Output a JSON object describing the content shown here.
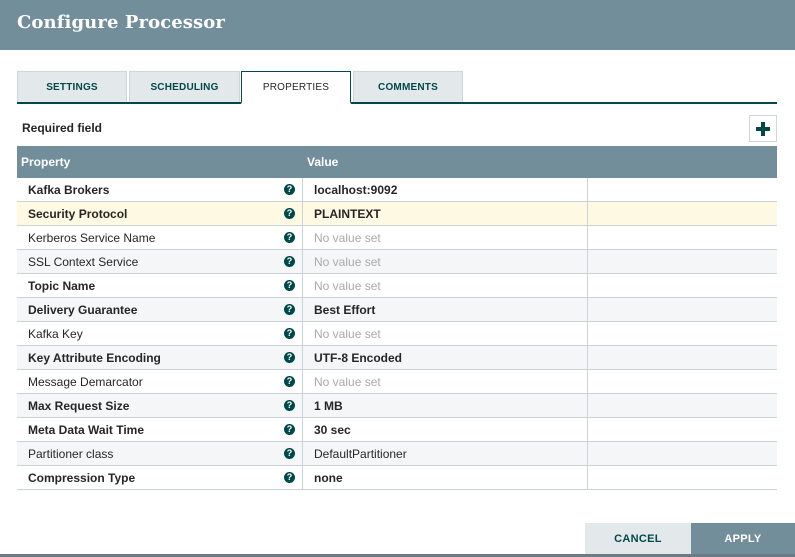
{
  "header": {
    "title": "Configure Processor"
  },
  "tabs": [
    {
      "label": "SETTINGS",
      "active": false
    },
    {
      "label": "SCHEDULING",
      "active": false
    },
    {
      "label": "PROPERTIES",
      "active": true
    },
    {
      "label": "COMMENTS",
      "active": false
    }
  ],
  "properties_panel": {
    "required_label": "Required field",
    "add_icon": "plus-icon",
    "columns": {
      "property": "Property",
      "value": "Value"
    },
    "rows": [
      {
        "name": "Kafka Brokers",
        "required": true,
        "value": "localhost:9092",
        "empty": false
      },
      {
        "name": "Security Protocol",
        "required": true,
        "value": "PLAINTEXT",
        "empty": false
      },
      {
        "name": "Kerberos Service Name",
        "required": false,
        "value": "No value set",
        "empty": true
      },
      {
        "name": "SSL Context Service",
        "required": false,
        "value": "No value set",
        "empty": true
      },
      {
        "name": "Topic Name",
        "required": true,
        "value": "No value set",
        "empty": true
      },
      {
        "name": "Delivery Guarantee",
        "required": true,
        "value": "Best Effort",
        "empty": false
      },
      {
        "name": "Kafka Key",
        "required": false,
        "value": "No value set",
        "empty": true
      },
      {
        "name": "Key Attribute Encoding",
        "required": true,
        "value": "UTF-8 Encoded",
        "empty": false
      },
      {
        "name": "Message Demarcator",
        "required": false,
        "value": "No value set",
        "empty": true
      },
      {
        "name": "Max Request Size",
        "required": true,
        "value": "1 MB",
        "empty": false
      },
      {
        "name": "Meta Data Wait Time",
        "required": true,
        "value": "30 sec",
        "empty": false
      },
      {
        "name": "Partitioner class",
        "required": false,
        "value": "DefaultPartitioner",
        "empty": false
      },
      {
        "name": "Compression Type",
        "required": true,
        "value": "none",
        "empty": false
      }
    ],
    "help_glyph": "?"
  },
  "footer": {
    "cancel_label": "CANCEL",
    "apply_label": "APPLY"
  },
  "colors": {
    "header": "#728e9b",
    "accent": "#004849",
    "selected_row": "#fef9e3",
    "tab_bg": "#e3e8eb"
  }
}
